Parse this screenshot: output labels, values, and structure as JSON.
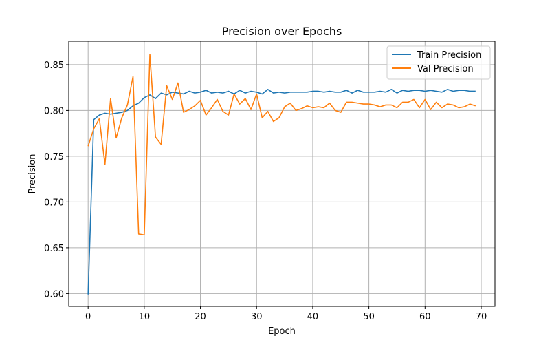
{
  "chart_data": {
    "type": "line",
    "title": "Precision over Epochs",
    "xlabel": "Epoch",
    "ylabel": "Precision",
    "xlim": [
      -3.45,
      72.45
    ],
    "ylim": [
      0.586,
      0.8755
    ],
    "xticks": [
      0,
      10,
      20,
      30,
      40,
      50,
      60,
      70
    ],
    "yticks": [
      0.6,
      0.65,
      0.7,
      0.75,
      0.8,
      0.85
    ],
    "ytick_labels": [
      "0.60",
      "0.65",
      "0.70",
      "0.75",
      "0.80",
      "0.85"
    ],
    "grid": true,
    "legend": "upper right",
    "x": [
      0,
      1,
      2,
      3,
      4,
      5,
      6,
      7,
      8,
      9,
      10,
      11,
      12,
      13,
      14,
      15,
      16,
      17,
      18,
      19,
      20,
      21,
      22,
      23,
      24,
      25,
      26,
      27,
      28,
      29,
      30,
      31,
      32,
      33,
      34,
      35,
      36,
      37,
      38,
      39,
      40,
      41,
      42,
      43,
      44,
      45,
      46,
      47,
      48,
      49,
      50,
      51,
      52,
      53,
      54,
      55,
      56,
      57,
      58,
      59,
      60,
      61,
      62,
      63,
      64,
      65,
      66,
      67,
      68,
      69
    ],
    "series": [
      {
        "name": "Train Precision",
        "color": "#1f77b4",
        "values": [
          0.599,
          0.79,
          0.795,
          0.797,
          0.796,
          0.797,
          0.798,
          0.8,
          0.805,
          0.808,
          0.814,
          0.817,
          0.813,
          0.819,
          0.817,
          0.82,
          0.819,
          0.818,
          0.821,
          0.819,
          0.82,
          0.822,
          0.819,
          0.82,
          0.819,
          0.821,
          0.818,
          0.822,
          0.819,
          0.821,
          0.82,
          0.818,
          0.823,
          0.819,
          0.82,
          0.819,
          0.82,
          0.82,
          0.82,
          0.82,
          0.821,
          0.821,
          0.82,
          0.821,
          0.82,
          0.82,
          0.822,
          0.819,
          0.822,
          0.82,
          0.82,
          0.82,
          0.821,
          0.82,
          0.823,
          0.819,
          0.822,
          0.821,
          0.822,
          0.822,
          0.821,
          0.822,
          0.821,
          0.82,
          0.823,
          0.821,
          0.822,
          0.822,
          0.821,
          0.821
        ]
      },
      {
        "name": "Val Precision",
        "color": "#ff7f0e",
        "values": [
          0.761,
          0.78,
          0.791,
          0.741,
          0.813,
          0.77,
          0.792,
          0.806,
          0.837,
          0.665,
          0.664,
          0.861,
          0.771,
          0.763,
          0.827,
          0.812,
          0.83,
          0.798,
          0.801,
          0.805,
          0.811,
          0.795,
          0.803,
          0.812,
          0.799,
          0.795,
          0.818,
          0.807,
          0.813,
          0.801,
          0.818,
          0.792,
          0.799,
          0.788,
          0.792,
          0.804,
          0.808,
          0.8,
          0.802,
          0.805,
          0.803,
          0.804,
          0.803,
          0.808,
          0.8,
          0.798,
          0.809,
          0.809,
          0.808,
          0.807,
          0.807,
          0.806,
          0.804,
          0.806,
          0.806,
          0.803,
          0.809,
          0.809,
          0.812,
          0.803,
          0.812,
          0.801,
          0.809,
          0.803,
          0.807,
          0.806,
          0.803,
          0.804,
          0.807,
          0.805
        ]
      }
    ]
  }
}
